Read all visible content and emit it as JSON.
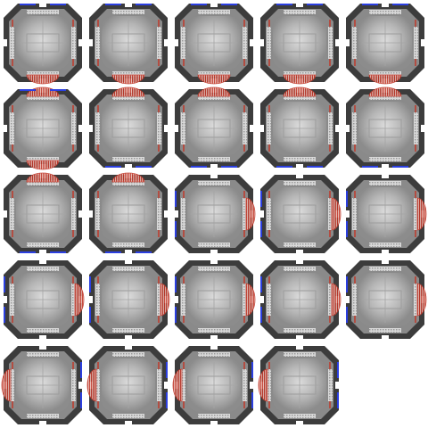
{
  "sheet": {
    "background": "#ffffff",
    "columns": 5,
    "frame_count": 24,
    "colors": {
      "hull_outer": "#3c3c3c",
      "hull_inner": "#8a8a8a",
      "panel_light": "#c9c9c9",
      "panel_mid": "#a9a9a9",
      "thruster_red": "#c0392b",
      "edge_blue": "#2b3fe0",
      "vent_grey": "#e8e8e8"
    },
    "frames": [
      {
        "thrusters": [
          "bottom"
        ],
        "blue_edge": "top"
      },
      {
        "thrusters": [
          "bottom"
        ],
        "blue_edge": "top"
      },
      {
        "thrusters": [
          "bottom"
        ],
        "blue_edge": "top"
      },
      {
        "thrusters": [
          "bottom"
        ],
        "blue_edge": "top"
      },
      {
        "thrusters": [
          "bottom"
        ],
        "blue_edge": "top"
      },
      {
        "thrusters": [
          "top",
          "bottom"
        ],
        "blue_edge": "top"
      },
      {
        "thrusters": [
          "top"
        ],
        "blue_edge": "bottom"
      },
      {
        "thrusters": [
          "top"
        ],
        "blue_edge": "bottom"
      },
      {
        "thrusters": [
          "top"
        ],
        "blue_edge": "bottom"
      },
      {
        "thrusters": [
          "top"
        ],
        "blue_edge": "bottom"
      },
      {
        "thrusters": [
          "top"
        ],
        "blue_edge": "bottom"
      },
      {
        "thrusters": [
          "top"
        ],
        "blue_edge": "bottom"
      },
      {
        "thrusters": [
          "right"
        ],
        "blue_edge": "left"
      },
      {
        "thrusters": [
          "right"
        ],
        "blue_edge": "left"
      },
      {
        "thrusters": [
          "right"
        ],
        "blue_edge": "left"
      },
      {
        "thrusters": [
          "right"
        ],
        "blue_edge": "left"
      },
      {
        "thrusters": [
          "right"
        ],
        "blue_edge": "left"
      },
      {
        "thrusters": [
          "right"
        ],
        "blue_edge": "left"
      },
      {
        "thrusters": [
          "right"
        ],
        "blue_edge": "left"
      },
      {
        "thrusters": [
          "right"
        ],
        "blue_edge": "left"
      },
      {
        "thrusters": [
          "left"
        ],
        "blue_edge": "right"
      },
      {
        "thrusters": [
          "left"
        ],
        "blue_edge": "right"
      },
      {
        "thrusters": [
          "left"
        ],
        "blue_edge": "right"
      },
      {
        "thrusters": [
          "left"
        ],
        "blue_edge": "right"
      }
    ]
  }
}
